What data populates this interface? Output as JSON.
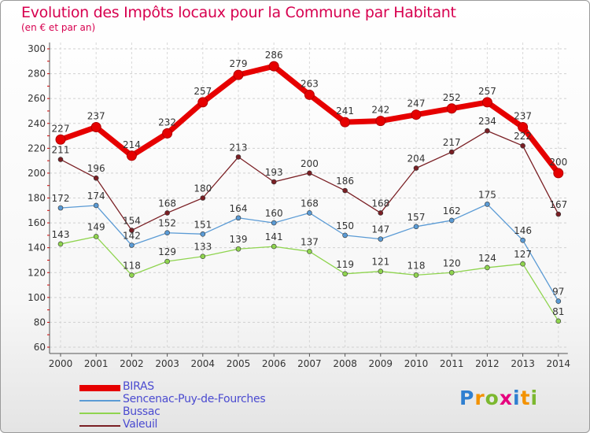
{
  "title": "Evolution des Impôts locaux pour la Commune par Habitant",
  "subtitle": "(en € et par an)",
  "logo": {
    "letters": [
      {
        "char": "P",
        "color": "#2f7fd0"
      },
      {
        "char": "r",
        "color": "#f39200"
      },
      {
        "char": "o",
        "color": "#7cb82f"
      },
      {
        "char": "x",
        "color": "#e6007e"
      },
      {
        "char": "i",
        "color": "#2f7fd0"
      },
      {
        "char": "t",
        "color": "#f39200"
      },
      {
        "char": "i",
        "color": "#7cb82f"
      }
    ]
  },
  "chart_data": {
    "type": "line",
    "title": "Evolution des Impôts locaux pour la Commune par Habitant",
    "subtitle": "(en € et par an)",
    "categories": [
      "2000",
      "2001",
      "2002",
      "2003",
      "2004",
      "2005",
      "2006",
      "2007",
      "2008",
      "2009",
      "2010",
      "2011",
      "2012",
      "2013",
      "2014"
    ],
    "ylim": [
      60,
      300
    ],
    "yticks": [
      60,
      80,
      100,
      120,
      140,
      160,
      180,
      200,
      220,
      240,
      260,
      280,
      300
    ],
    "grid": true,
    "legend_position": "bottom-left",
    "series": [
      {
        "name": "BIRAS",
        "color": "#e60000",
        "bold": true,
        "values": [
          227,
          237,
          214,
          232,
          257,
          279,
          286,
          263,
          241,
          242,
          247,
          252,
          257,
          237,
          200
        ]
      },
      {
        "name": "Sencenac-Puy-de-Fourches",
        "color": "#5b9bd5",
        "bold": false,
        "values": [
          172,
          174,
          142,
          152,
          151,
          164,
          160,
          168,
          150,
          147,
          157,
          162,
          175,
          146,
          97
        ]
      },
      {
        "name": "Bussac",
        "color": "#8fd44f",
        "bold": false,
        "values": [
          143,
          149,
          118,
          129,
          133,
          139,
          141,
          137,
          119,
          121,
          118,
          120,
          124,
          127,
          81
        ]
      },
      {
        "name": "Valeuil",
        "color": "#7a1f24",
        "bold": false,
        "values": [
          211,
          196,
          154,
          168,
          180,
          213,
          193,
          200,
          186,
          168,
          204,
          217,
          234,
          222,
          167
        ]
      }
    ]
  }
}
